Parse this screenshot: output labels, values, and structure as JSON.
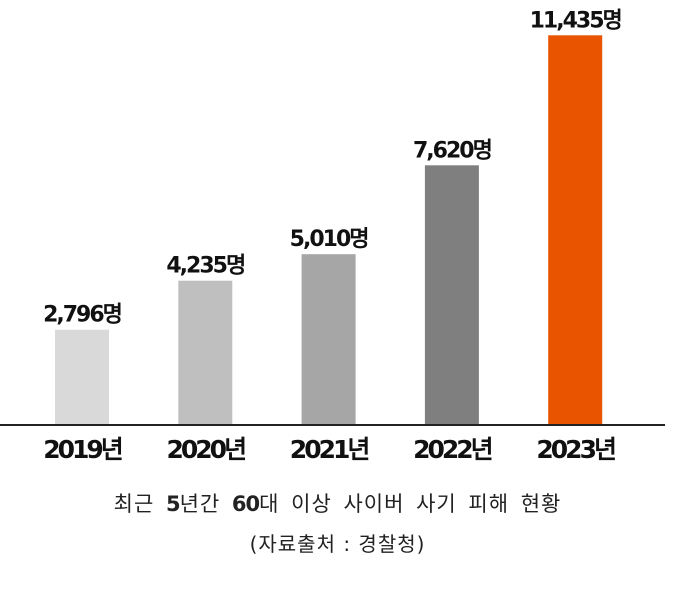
{
  "chart_data": {
    "type": "bar",
    "categories": [
      "2019년",
      "2020년",
      "2021년",
      "2022년",
      "2023년"
    ],
    "values": [
      2796,
      4235,
      5010,
      7620,
      11435
    ],
    "value_labels": [
      "2,796명",
      "4,235명",
      "5,010명",
      "7,620명",
      "11,435명"
    ],
    "unit": "명",
    "bar_colors": [
      "#d9d9d9",
      "#bfbfbf",
      "#a6a6a6",
      "#7f7f7f",
      "#e85400"
    ],
    "ylim": [
      0,
      12000
    ],
    "grid": false,
    "legend": "none",
    "title": "",
    "xlabel": "",
    "ylabel": ""
  },
  "caption": {
    "parts": [
      "최근 ",
      "5",
      "년간 ",
      "60",
      "대 이상 사이버 사기 피해 현황"
    ],
    "source": "(자료출처 : 경찰청)"
  }
}
